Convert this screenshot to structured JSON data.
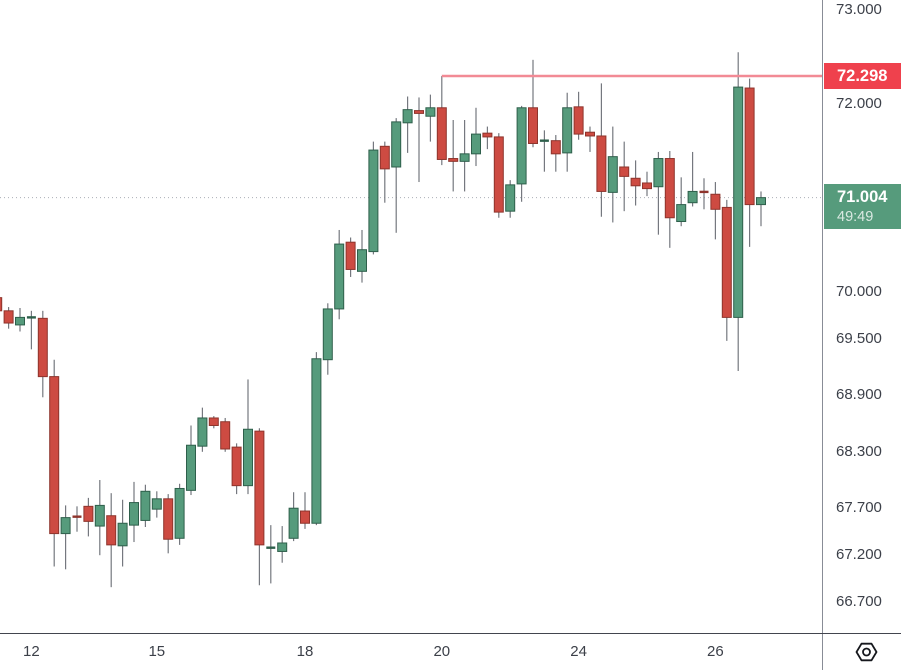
{
  "chart": {
    "background": "#ffffff",
    "up_color": "#569B7C",
    "up_border": "#2E5F4B",
    "down_color": "#CD4B42",
    "down_border": "#8E342C",
    "wick_color": "#75787F",
    "alert_line_color": "#F28A95",
    "alert_badge_color": "#EF414D",
    "last_badge_color": "#569B7C",
    "current_price_dots_color": "#ABAEB6",
    "axis_text_color": "#3C4049"
  },
  "chart_data": {
    "type": "candlestick",
    "title": "",
    "grid": "off",
    "legend_position": "none",
    "y_ticks": [
      "73.000",
      "72.000",
      "70.000",
      "69.500",
      "68.900",
      "68.300",
      "67.700",
      "67.200",
      "66.700"
    ],
    "x_ticks": [
      {
        "label": "12",
        "index": 3
      },
      {
        "label": "15",
        "index": 14
      },
      {
        "label": "18",
        "index": 27
      },
      {
        "label": "20",
        "index": 39
      },
      {
        "label": "24",
        "index": 51
      },
      {
        "label": "26",
        "index": 63
      }
    ],
    "price_line": {
      "value": "72.298",
      "price": 72.298,
      "starts_at_index": 39
    },
    "last_price": {
      "value": "71.004",
      "price": 71.004,
      "countdown": "49:49"
    },
    "y_axis_range": [
      66.45,
      73.3
    ],
    "candles": [
      [
        69.94,
        69.96,
        69.78,
        69.8
      ],
      [
        69.8,
        69.84,
        69.61,
        69.67
      ],
      [
        69.65,
        69.83,
        69.58,
        69.73
      ],
      [
        69.72,
        69.8,
        69.39,
        69.74
      ],
      [
        69.72,
        69.8,
        68.88,
        69.1
      ],
      [
        69.1,
        69.28,
        67.08,
        67.43
      ],
      [
        67.43,
        67.73,
        67.05,
        67.6
      ],
      [
        67.62,
        67.72,
        67.45,
        67.6
      ],
      [
        67.72,
        67.81,
        67.4,
        67.56
      ],
      [
        67.51,
        68.0,
        67.2,
        67.73
      ],
      [
        67.62,
        67.86,
        66.86,
        67.31
      ],
      [
        67.3,
        67.79,
        67.08,
        67.54
      ],
      [
        67.52,
        67.98,
        67.34,
        67.76
      ],
      [
        67.57,
        67.95,
        67.5,
        67.88
      ],
      [
        67.69,
        67.88,
        67.6,
        67.8
      ],
      [
        67.8,
        67.85,
        67.22,
        67.37
      ],
      [
        67.38,
        67.96,
        67.31,
        67.91
      ],
      [
        67.89,
        68.58,
        67.84,
        68.37
      ],
      [
        68.36,
        68.77,
        68.3,
        68.66
      ],
      [
        68.66,
        68.68,
        68.55,
        68.58
      ],
      [
        68.62,
        68.66,
        68.3,
        68.33
      ],
      [
        68.35,
        68.39,
        67.85,
        67.94
      ],
      [
        67.94,
        69.07,
        67.85,
        68.54
      ],
      [
        68.52,
        68.55,
        66.88,
        67.31
      ],
      [
        67.27,
        67.52,
        66.9,
        67.29
      ],
      [
        67.24,
        67.51,
        67.12,
        67.33
      ],
      [
        67.38,
        67.87,
        67.35,
        67.7
      ],
      [
        67.67,
        67.87,
        67.48,
        67.54
      ],
      [
        67.54,
        69.36,
        67.52,
        69.29
      ],
      [
        69.28,
        69.88,
        69.12,
        69.82
      ],
      [
        69.82,
        70.66,
        69.71,
        70.51
      ],
      [
        70.53,
        70.58,
        70.16,
        70.24
      ],
      [
        70.22,
        70.66,
        70.1,
        70.45
      ],
      [
        70.43,
        71.6,
        70.4,
        71.51
      ],
      [
        71.55,
        71.6,
        70.95,
        71.31
      ],
      [
        71.33,
        71.85,
        70.63,
        71.81
      ],
      [
        71.8,
        72.08,
        71.48,
        71.94
      ],
      [
        71.93,
        72.07,
        71.17,
        71.9
      ],
      [
        71.87,
        72.1,
        71.6,
        71.96
      ],
      [
        71.96,
        72.298,
        71.35,
        71.41
      ],
      [
        71.42,
        71.83,
        71.07,
        71.39
      ],
      [
        71.39,
        71.83,
        71.07,
        71.47
      ],
      [
        71.47,
        71.96,
        71.34,
        71.68
      ],
      [
        71.69,
        71.76,
        71.52,
        71.65
      ],
      [
        71.65,
        71.69,
        70.79,
        70.85
      ],
      [
        70.86,
        71.19,
        70.79,
        71.14
      ],
      [
        71.15,
        71.98,
        70.96,
        71.96
      ],
      [
        71.96,
        72.47,
        71.54,
        71.58
      ],
      [
        71.6,
        71.72,
        71.28,
        71.62
      ],
      [
        71.61,
        71.67,
        71.28,
        71.47
      ],
      [
        71.48,
        72.12,
        71.28,
        71.96
      ],
      [
        71.97,
        72.13,
        71.62,
        71.68
      ],
      [
        71.7,
        71.76,
        71.49,
        71.66
      ],
      [
        71.66,
        72.22,
        70.8,
        71.07
      ],
      [
        71.06,
        71.76,
        70.74,
        71.44
      ],
      [
        71.33,
        71.6,
        70.86,
        71.23
      ],
      [
        71.21,
        71.4,
        70.92,
        71.13
      ],
      [
        71.16,
        71.28,
        71.02,
        71.1
      ],
      [
        71.12,
        71.49,
        70.61,
        71.42
      ],
      [
        71.42,
        71.5,
        70.47,
        70.79
      ],
      [
        70.75,
        71.22,
        70.7,
        70.93
      ],
      [
        70.95,
        71.49,
        70.91,
        71.07
      ],
      [
        71.07,
        71.21,
        70.88,
        71.06
      ],
      [
        71.04,
        71.17,
        70.56,
        70.88
      ],
      [
        70.9,
        70.98,
        69.48,
        69.73
      ],
      [
        69.73,
        72.55,
        69.16,
        72.18
      ],
      [
        72.17,
        72.27,
        70.48,
        70.93
      ],
      [
        70.93,
        71.07,
        70.7,
        71.004
      ]
    ]
  },
  "icons": {
    "bottom_right": "settings-gear"
  }
}
